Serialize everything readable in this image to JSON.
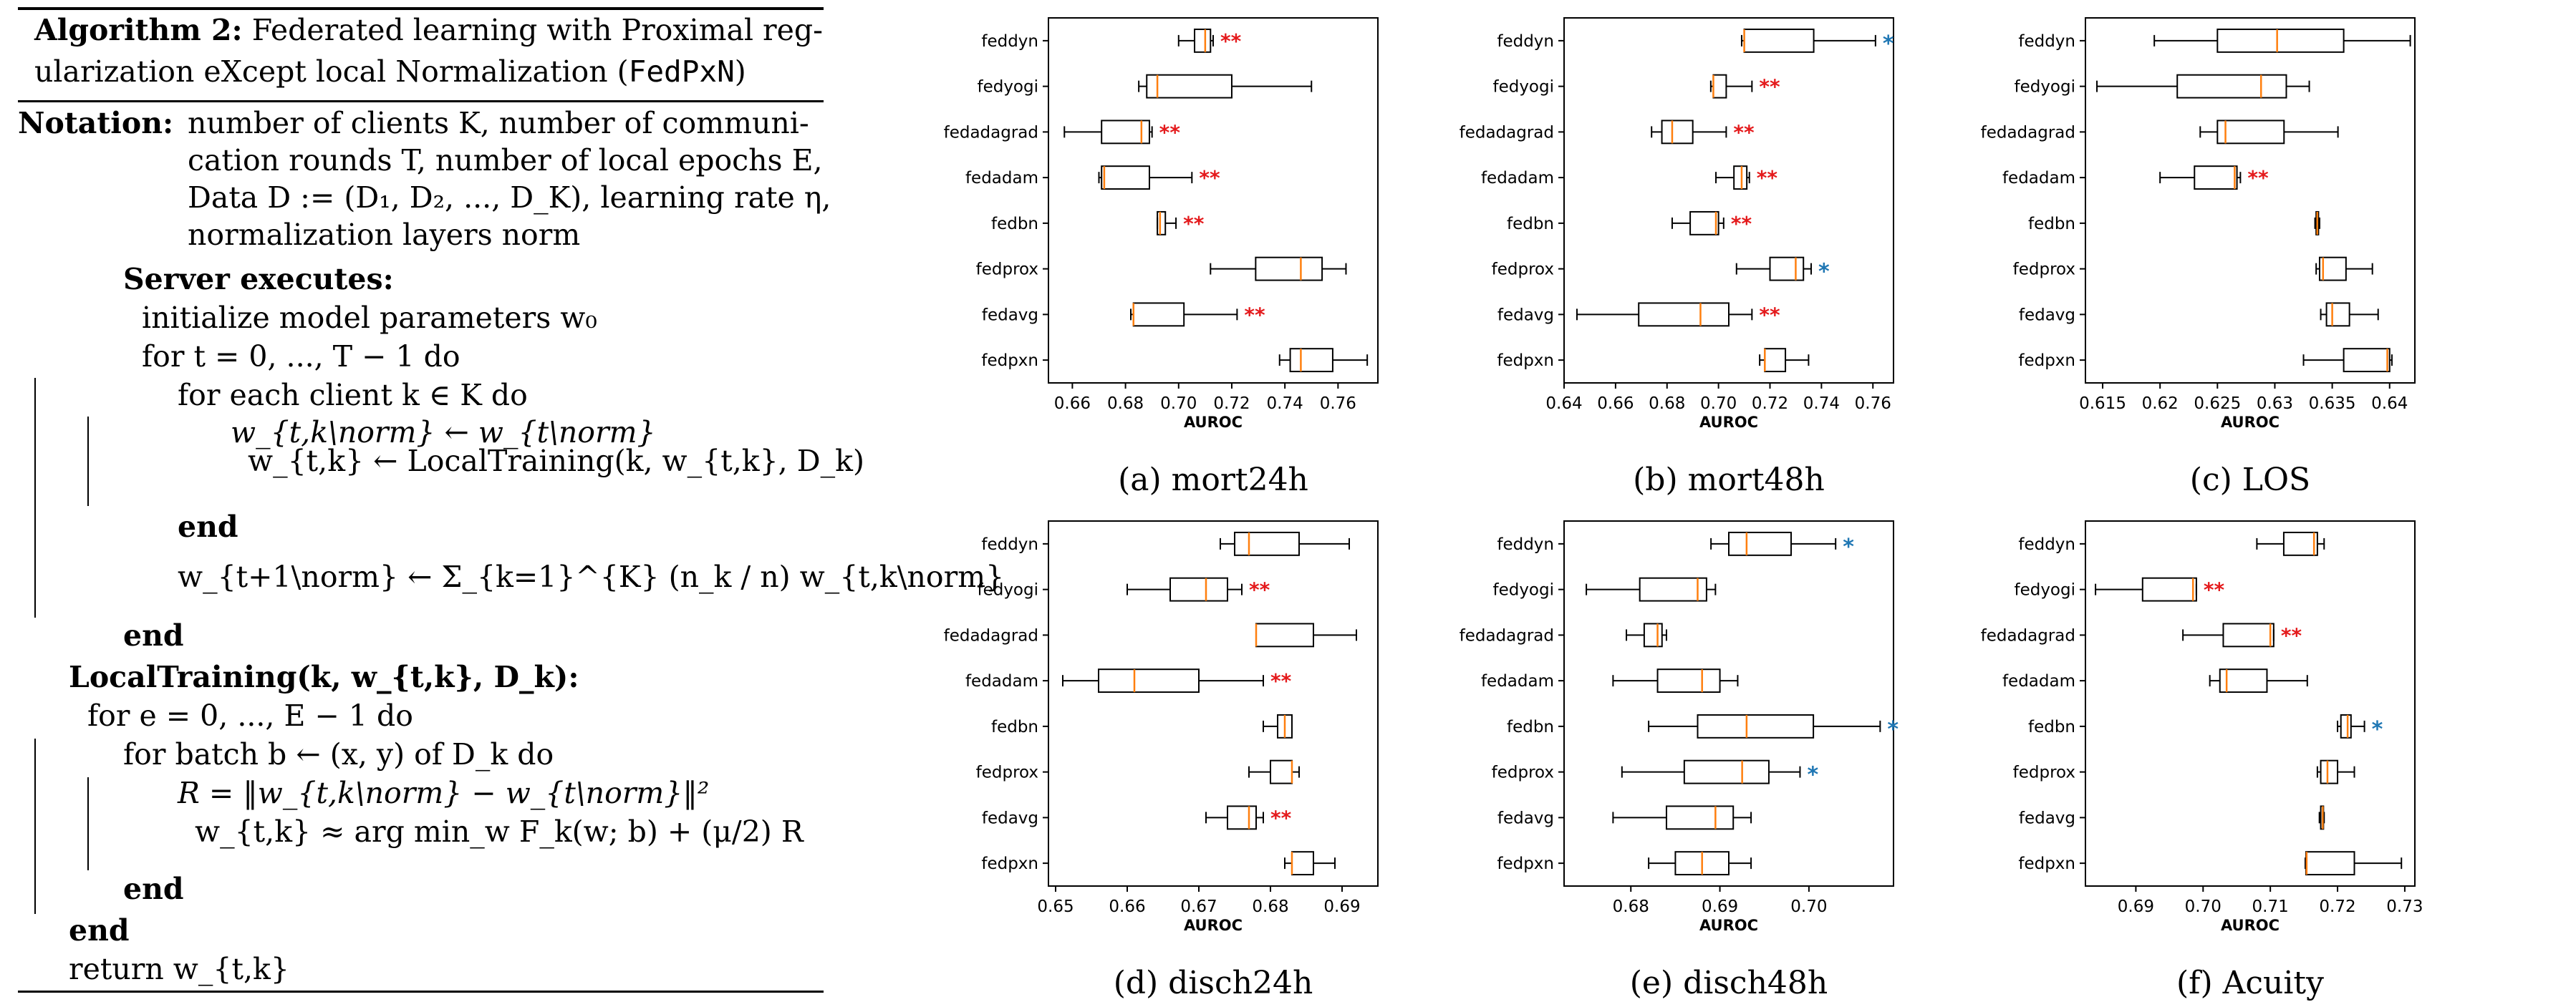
{
  "algorithm": {
    "title_label": "Algorithm 2:",
    "title_text_1": "Federated learning with Proximal reg-",
    "title_text_2": "ularization eXcept local Normalization (",
    "title_code": "FedPxN",
    "title_close": ")",
    "notation_label": "Notation:",
    "notation_lines": [
      "number of clients K, number of communi-",
      "cation rounds T, number of local epochs E,",
      "Data D := (D₁, D₂, ..., D_K), learning rate η,",
      "normalization layers norm"
    ],
    "lines": [
      "Server executes:",
      "initialize model parameters w₀",
      "for t = 0, ..., T − 1 do",
      "for each client k ∈ K do",
      "w_{t,k\\norm} ← w_{t\\norm}",
      "w_{t,k} ← LocalTraining(k, w_{t,k}, D_k)",
      "end",
      "w_{t+1\\norm} ← Σ_{k=1}^{K} (n_k / n) w_{t,k\\norm}",
      "end",
      "LocalTraining(k, w_{t,k}, D_k):",
      "for e = 0, ..., E − 1 do",
      "for batch b ← (x, y) of D_k do",
      "R = ‖w_{t,k\\norm} − w_{t\\norm}‖²",
      "w_{t,k} ≈ arg min_w F_k(w; b) + (μ/2) R",
      "end",
      "end",
      "return w_{t,k}"
    ]
  },
  "colors": {
    "median": "#ff7f0e",
    "sig_red": "#e41a1c",
    "sig_blue": "#1f77b4"
  },
  "chart_data": [
    {
      "type": "boxplot",
      "caption": "(a) mort24h",
      "xlabel": "AUROC",
      "xlim": [
        0.651,
        0.775
      ],
      "ticks": [
        0.66,
        0.68,
        0.7,
        0.72,
        0.74,
        0.76
      ],
      "categories": [
        "feddyn",
        "fedyogi",
        "fedadagrad",
        "fedadam",
        "fedbn",
        "fedprox",
        "fedavg",
        "fedpxn"
      ],
      "boxes": [
        {
          "wlo": 0.7,
          "q1": 0.706,
          "med": 0.71,
          "q3": 0.712,
          "whi": 0.713,
          "sig": "**"
        },
        {
          "wlo": 0.685,
          "q1": 0.688,
          "med": 0.692,
          "q3": 0.72,
          "whi": 0.75,
          "sig": ""
        },
        {
          "wlo": 0.657,
          "q1": 0.671,
          "med": 0.686,
          "q3": 0.689,
          "whi": 0.69,
          "sig": "**"
        },
        {
          "wlo": 0.67,
          "q1": 0.671,
          "med": 0.672,
          "q3": 0.689,
          "whi": 0.705,
          "sig": "**"
        },
        {
          "wlo": 0.692,
          "q1": 0.692,
          "med": 0.693,
          "q3": 0.695,
          "whi": 0.699,
          "sig": "**"
        },
        {
          "wlo": 0.712,
          "q1": 0.729,
          "med": 0.746,
          "q3": 0.754,
          "whi": 0.763,
          "sig": ""
        },
        {
          "wlo": 0.682,
          "q1": 0.683,
          "med": 0.683,
          "q3": 0.702,
          "whi": 0.722,
          "sig": "**"
        },
        {
          "wlo": 0.738,
          "q1": 0.742,
          "med": 0.746,
          "q3": 0.758,
          "whi": 0.771,
          "sig": ""
        }
      ]
    },
    {
      "type": "boxplot",
      "caption": "(b) mort48h",
      "xlabel": "AUROC",
      "xlim": [
        0.64,
        0.768
      ],
      "ticks": [
        0.64,
        0.66,
        0.68,
        0.7,
        0.72,
        0.74,
        0.76
      ],
      "categories": [
        "feddyn",
        "fedyogi",
        "fedadagrad",
        "fedadam",
        "fedbn",
        "fedprox",
        "fedavg",
        "fedpxn"
      ],
      "boxes": [
        {
          "wlo": 0.709,
          "q1": 0.71,
          "med": 0.71,
          "q3": 0.737,
          "whi": 0.761,
          "sig": "*"
        },
        {
          "wlo": 0.697,
          "q1": 0.698,
          "med": 0.698,
          "q3": 0.703,
          "whi": 0.713,
          "sig": "**"
        },
        {
          "wlo": 0.674,
          "q1": 0.678,
          "med": 0.682,
          "q3": 0.69,
          "whi": 0.703,
          "sig": "**"
        },
        {
          "wlo": 0.699,
          "q1": 0.706,
          "med": 0.709,
          "q3": 0.711,
          "whi": 0.712,
          "sig": "**"
        },
        {
          "wlo": 0.682,
          "q1": 0.689,
          "med": 0.699,
          "q3": 0.7,
          "whi": 0.702,
          "sig": "**"
        },
        {
          "wlo": 0.707,
          "q1": 0.72,
          "med": 0.73,
          "q3": 0.733,
          "whi": 0.736,
          "sig": "*"
        },
        {
          "wlo": 0.645,
          "q1": 0.669,
          "med": 0.693,
          "q3": 0.704,
          "whi": 0.713,
          "sig": "**"
        },
        {
          "wlo": 0.716,
          "q1": 0.718,
          "med": 0.718,
          "q3": 0.726,
          "whi": 0.735,
          "sig": ""
        }
      ]
    },
    {
      "type": "boxplot",
      "caption": "(c) LOS",
      "xlabel": "AUROC",
      "xlim": [
        0.6135,
        0.6422
      ],
      "ticks": [
        0.615,
        0.62,
        0.625,
        0.63,
        0.635,
        0.64
      ],
      "categories": [
        "feddyn",
        "fedyogi",
        "fedadagrad",
        "fedadam",
        "fedbn",
        "fedprox",
        "fedavg",
        "fedpxn"
      ],
      "boxes": [
        {
          "wlo": 0.6195,
          "q1": 0.625,
          "med": 0.6302,
          "q3": 0.636,
          "whi": 0.6418,
          "sig": ""
        },
        {
          "wlo": 0.6145,
          "q1": 0.6215,
          "med": 0.6288,
          "q3": 0.631,
          "whi": 0.633,
          "sig": ""
        },
        {
          "wlo": 0.6235,
          "q1": 0.625,
          "med": 0.6257,
          "q3": 0.6308,
          "whi": 0.6355,
          "sig": ""
        },
        {
          "wlo": 0.62,
          "q1": 0.623,
          "med": 0.6265,
          "q3": 0.6267,
          "whi": 0.627,
          "sig": "**"
        },
        {
          "wlo": 0.6335,
          "q1": 0.6336,
          "med": 0.6337,
          "q3": 0.6338,
          "whi": 0.6339,
          "sig": ""
        },
        {
          "wlo": 0.6336,
          "q1": 0.6339,
          "med": 0.6342,
          "q3": 0.6362,
          "whi": 0.6385,
          "sig": ""
        },
        {
          "wlo": 0.634,
          "q1": 0.6345,
          "med": 0.635,
          "q3": 0.6365,
          "whi": 0.639,
          "sig": ""
        },
        {
          "wlo": 0.6325,
          "q1": 0.636,
          "med": 0.6398,
          "q3": 0.64,
          "whi": 0.6402,
          "sig": ""
        }
      ]
    },
    {
      "type": "boxplot",
      "caption": "(d) disch24h",
      "xlabel": "AUROC",
      "xlim": [
        0.649,
        0.695
      ],
      "ticks": [
        0.65,
        0.66,
        0.67,
        0.68,
        0.69
      ],
      "categories": [
        "feddyn",
        "fedyogi",
        "fedadagrad",
        "fedadam",
        "fedbn",
        "fedprox",
        "fedavg",
        "fedpxn"
      ],
      "boxes": [
        {
          "wlo": 0.673,
          "q1": 0.675,
          "med": 0.677,
          "q3": 0.684,
          "whi": 0.691,
          "sig": ""
        },
        {
          "wlo": 0.66,
          "q1": 0.666,
          "med": 0.671,
          "q3": 0.674,
          "whi": 0.676,
          "sig": "**"
        },
        {
          "wlo": 0.678,
          "q1": 0.678,
          "med": 0.678,
          "q3": 0.686,
          "whi": 0.692,
          "sig": ""
        },
        {
          "wlo": 0.651,
          "q1": 0.656,
          "med": 0.661,
          "q3": 0.67,
          "whi": 0.679,
          "sig": "**"
        },
        {
          "wlo": 0.679,
          "q1": 0.681,
          "med": 0.682,
          "q3": 0.683,
          "whi": 0.683,
          "sig": ""
        },
        {
          "wlo": 0.677,
          "q1": 0.68,
          "med": 0.683,
          "q3": 0.683,
          "whi": 0.684,
          "sig": ""
        },
        {
          "wlo": 0.671,
          "q1": 0.674,
          "med": 0.677,
          "q3": 0.678,
          "whi": 0.679,
          "sig": "**"
        },
        {
          "wlo": 0.682,
          "q1": 0.683,
          "med": 0.683,
          "q3": 0.686,
          "whi": 0.689,
          "sig": ""
        }
      ]
    },
    {
      "type": "boxplot",
      "caption": "(e) disch48h",
      "xlabel": "AUROC",
      "xlim": [
        0.6725,
        0.7095
      ],
      "ticks": [
        0.68,
        0.69,
        0.7
      ],
      "categories": [
        "feddyn",
        "fedyogi",
        "fedadagrad",
        "fedadam",
        "fedbn",
        "fedprox",
        "fedavg",
        "fedpxn"
      ],
      "boxes": [
        {
          "wlo": 0.689,
          "q1": 0.691,
          "med": 0.693,
          "q3": 0.698,
          "whi": 0.703,
          "sig": "*"
        },
        {
          "wlo": 0.675,
          "q1": 0.681,
          "med": 0.6875,
          "q3": 0.6885,
          "whi": 0.6895,
          "sig": ""
        },
        {
          "wlo": 0.6795,
          "q1": 0.6815,
          "med": 0.683,
          "q3": 0.6835,
          "whi": 0.684,
          "sig": ""
        },
        {
          "wlo": 0.678,
          "q1": 0.683,
          "med": 0.688,
          "q3": 0.69,
          "whi": 0.692,
          "sig": ""
        },
        {
          "wlo": 0.682,
          "q1": 0.6875,
          "med": 0.693,
          "q3": 0.7005,
          "whi": 0.708,
          "sig": "*"
        },
        {
          "wlo": 0.679,
          "q1": 0.686,
          "med": 0.6925,
          "q3": 0.6955,
          "whi": 0.699,
          "sig": "*"
        },
        {
          "wlo": 0.678,
          "q1": 0.684,
          "med": 0.6895,
          "q3": 0.6915,
          "whi": 0.6935,
          "sig": ""
        },
        {
          "wlo": 0.682,
          "q1": 0.685,
          "med": 0.688,
          "q3": 0.691,
          "whi": 0.6935,
          "sig": ""
        }
      ]
    },
    {
      "type": "boxplot",
      "caption": "(f) Acuity",
      "xlabel": "AUROC",
      "xlim": [
        0.6825,
        0.7315
      ],
      "ticks": [
        0.69,
        0.7,
        0.71,
        0.72,
        0.73
      ],
      "categories": [
        "feddyn",
        "fedyogi",
        "fedadagrad",
        "fedadam",
        "fedbn",
        "fedprox",
        "fedavg",
        "fedpxn"
      ],
      "boxes": [
        {
          "wlo": 0.708,
          "q1": 0.712,
          "med": 0.7165,
          "q3": 0.717,
          "whi": 0.718,
          "sig": ""
        },
        {
          "wlo": 0.684,
          "q1": 0.691,
          "med": 0.6985,
          "q3": 0.699,
          "whi": 0.699,
          "sig": "**"
        },
        {
          "wlo": 0.697,
          "q1": 0.703,
          "med": 0.71,
          "q3": 0.7105,
          "whi": 0.7105,
          "sig": "**"
        },
        {
          "wlo": 0.701,
          "q1": 0.7025,
          "med": 0.7035,
          "q3": 0.7095,
          "whi": 0.7155,
          "sig": ""
        },
        {
          "wlo": 0.72,
          "q1": 0.7205,
          "med": 0.7215,
          "q3": 0.722,
          "whi": 0.724,
          "sig": "*"
        },
        {
          "wlo": 0.717,
          "q1": 0.7175,
          "med": 0.7185,
          "q3": 0.72,
          "whi": 0.7225,
          "sig": ""
        },
        {
          "wlo": 0.7173,
          "q1": 0.7175,
          "med": 0.7178,
          "q3": 0.7179,
          "whi": 0.718,
          "sig": ""
        },
        {
          "wlo": 0.7152,
          "q1": 0.7153,
          "med": 0.7154,
          "q3": 0.7225,
          "whi": 0.7295,
          "sig": ""
        }
      ]
    }
  ]
}
